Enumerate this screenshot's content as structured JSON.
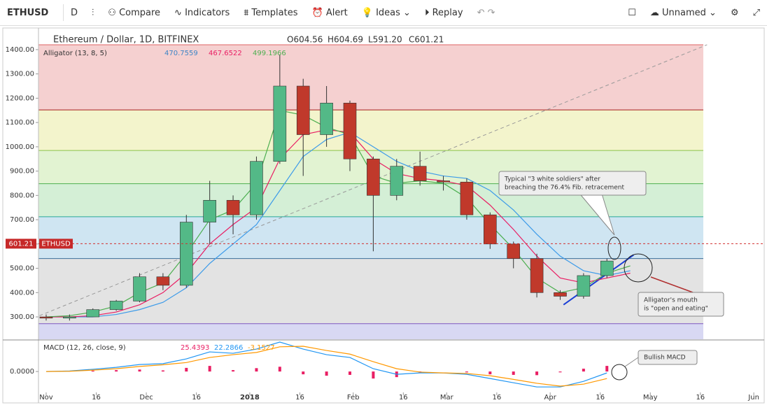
{
  "toolbar": {
    "symbol": "ETHUSD",
    "interval": "D",
    "compare": "Compare",
    "indicators": "Indicators",
    "templates": "Templates",
    "alert": "Alert",
    "ideas": "Ideas",
    "replay": "Replay",
    "layout": "Unnamed"
  },
  "chart_data": [
    {
      "type": "candlestick",
      "title": "Ethereum / Dollar, 1D, BITFINEX",
      "ohlc": [
        "O604.56",
        "H604.69",
        "L591.20",
        "C601.21"
      ],
      "indicator": "Alligator (13, 8, 5)",
      "indicator_values": [
        {
          "value": 470.7559,
          "color": "#3d85c6"
        },
        {
          "value": 467.6522,
          "color": "#e91e63"
        },
        {
          "value": 499.1966,
          "color": "#4caf50"
        }
      ],
      "x": [
        0,
        7,
        14,
        21,
        28,
        35,
        42,
        49,
        56,
        63,
        70,
        77,
        84,
        91,
        98,
        105,
        112,
        119,
        126,
        133,
        140,
        147,
        154,
        161,
        168
      ],
      "open": [
        300,
        295,
        300,
        330,
        365,
        465,
        430,
        690,
        780,
        720,
        940,
        1250,
        1050,
        1180,
        950,
        800,
        920,
        860,
        855,
        720,
        600,
        540,
        400,
        385,
        470
      ],
      "high": [
        310,
        310,
        335,
        370,
        480,
        480,
        720,
        860,
        800,
        960,
        1380,
        1280,
        1250,
        1190,
        960,
        950,
        980,
        880,
        870,
        730,
        610,
        560,
        410,
        480,
        540
      ],
      "low": [
        285,
        285,
        300,
        325,
        360,
        410,
        420,
        600,
        640,
        700,
        930,
        880,
        1000,
        900,
        570,
        780,
        840,
        820,
        700,
        580,
        500,
        380,
        370,
        375,
        460
      ],
      "close": [
        295,
        300,
        330,
        365,
        465,
        430,
        690,
        780,
        720,
        940,
        1250,
        1050,
        1180,
        950,
        800,
        920,
        860,
        855,
        720,
        600,
        540,
        400,
        385,
        470,
        530
      ],
      "up_color": "#53b987",
      "down_color": "#c0392b",
      "alligator": {
        "x": [
          0,
          7,
          14,
          21,
          28,
          35,
          42,
          49,
          56,
          63,
          70,
          77,
          84,
          91,
          98,
          105,
          112,
          119,
          126,
          133,
          140,
          147,
          154,
          161,
          168,
          175
        ],
        "series": [
          {
            "color": "#3d9be9",
            "values": [
              300,
              300,
              300,
              310,
              330,
              360,
              420,
              520,
              600,
              680,
              820,
              960,
              1030,
              1060,
              1000,
              940,
              900,
              880,
              870,
              820,
              740,
              640,
              550,
              490,
              470,
              490
            ]
          },
          {
            "color": "#e91e63",
            "values": [
              300,
              300,
              305,
              320,
              350,
              400,
              480,
              600,
              680,
              750,
              950,
              1050,
              1070,
              1060,
              950,
              890,
              870,
              860,
              840,
              760,
              660,
              550,
              460,
              440,
              460,
              480
            ]
          },
          {
            "color": "#4caf50",
            "values": [
              300,
              305,
              320,
              345,
              400,
              440,
              560,
              700,
              740,
              850,
              1150,
              1130,
              1080,
              1050,
              880,
              850,
              860,
              850,
              790,
              680,
              580,
              460,
              400,
              420,
              480,
              510
            ]
          }
        ]
      },
      "fib_levels": [
        {
          "value": 1420,
          "color": "#e06666",
          "band": "#f5d0d0"
        },
        {
          "value": 1152,
          "color": "#a61c1c",
          "band": "#f3f4cc"
        },
        {
          "value": 985,
          "color": "#8bc34a",
          "band": "#e2f3d2"
        },
        {
          "value": 848,
          "color": "#4caf50",
          "band": "#d4efd6"
        },
        {
          "value": 712,
          "color": "#26a69a",
          "band": "#cfe5f2"
        },
        {
          "value": 540,
          "color": "#3c6e99",
          "band": "#e3e3e3"
        },
        {
          "value": 272,
          "color": "#7e57c2",
          "band": "#d8d8f3"
        }
      ],
      "trend_lines": [
        {
          "x": [
            -2,
            198
          ],
          "y": [
            305,
            1420
          ],
          "color": "#999999",
          "dashed": true
        },
        {
          "x": [
            155,
            176
          ],
          "y": [
            350,
            555
          ],
          "color": "#1a3fd6",
          "dashed": false
        }
      ],
      "last_price": 601.21,
      "last_price_label": "ETHUSD",
      "annotations": [
        {
          "lines": [
            "Typical \"3 white soldiers\" after",
            "breaching the 76.4% Fib. retracement"
          ]
        },
        {
          "lines": [
            "Alligator's mouth",
            "is \"open and eating\""
          ]
        }
      ],
      "xlim": [
        -2.3,
        214.7
      ],
      "ylim": [
        208,
        1489
      ],
      "yticks": [
        {
          "value": 300,
          "label": "300.00"
        },
        {
          "value": 400,
          "label": "400.00"
        },
        {
          "value": 500,
          "label": "500.00"
        },
        {
          "value": 600,
          "label": "600.00"
        },
        {
          "value": 700,
          "label": "700.00"
        },
        {
          "value": 800,
          "label": "800.00"
        },
        {
          "value": 900,
          "label": "900.00"
        },
        {
          "value": 1000,
          "label": "1000.00"
        },
        {
          "value": 1100,
          "label": "1100.00"
        },
        {
          "value": 1200,
          "label": "1200.00"
        },
        {
          "value": 1300,
          "label": "1300.00"
        },
        {
          "value": 1400,
          "label": "1400.00"
        }
      ],
      "xticks": [
        {
          "value": 0,
          "label": "Nov"
        },
        {
          "value": 15,
          "label": "16"
        },
        {
          "value": 30,
          "label": "Dec"
        },
        {
          "value": 45,
          "label": "16"
        },
        {
          "value": 61,
          "label": "2018"
        },
        {
          "value": 76,
          "label": "16"
        },
        {
          "value": 92,
          "label": "Feb"
        },
        {
          "value": 107,
          "label": "16"
        },
        {
          "value": 120,
          "label": "Mar"
        },
        {
          "value": 135,
          "label": "16"
        },
        {
          "value": 151,
          "label": "Apr"
        },
        {
          "value": 166,
          "label": "16"
        },
        {
          "value": 181,
          "label": "May"
        },
        {
          "value": 196,
          "label": "16"
        },
        {
          "value": 212,
          "label": "Jun"
        }
      ]
    },
    {
      "type": "macd",
      "title": "MACD (12, 26, close, 9)",
      "header_values": [
        {
          "value": 25.4393,
          "color": "#e91e63"
        },
        {
          "value": 22.2866,
          "color": "#2196f3"
        },
        {
          "value": -3.1527,
          "color": "#ff9800"
        }
      ],
      "x": [
        0,
        7,
        14,
        21,
        28,
        35,
        42,
        49,
        56,
        63,
        70,
        77,
        84,
        91,
        98,
        105,
        112,
        119,
        126,
        133,
        140,
        147,
        154,
        161,
        168
      ],
      "series": [
        {
          "color": "#2196f3",
          "values": [
            0,
            2,
            8,
            15,
            25,
            28,
            45,
            70,
            65,
            80,
            105,
            80,
            60,
            50,
            10,
            -10,
            -5,
            -5,
            -10,
            -25,
            -40,
            -55,
            -55,
            -35,
            -5
          ]
        },
        {
          "color": "#ff9800",
          "values": [
            0,
            1,
            5,
            10,
            18,
            24,
            32,
            50,
            60,
            68,
            88,
            90,
            75,
            62,
            35,
            10,
            -2,
            -5,
            -7,
            -15,
            -28,
            -42,
            -52,
            -45,
            -25
          ]
        }
      ],
      "histogram": {
        "color": "#e91e63",
        "values": [
          0,
          1,
          3,
          5,
          7,
          4,
          13,
          20,
          5,
          12,
          17,
          -10,
          -15,
          -12,
          -25,
          -20,
          -3,
          0,
          -3,
          -10,
          -12,
          -13,
          -3,
          10,
          20
        ]
      },
      "annotation": "Bullish MACD",
      "xlim": [
        -2.3,
        214.7
      ],
      "ylim": [
        -72,
        110
      ],
      "yticks": [
        {
          "value": 0,
          "label": "0.0000"
        }
      ]
    }
  ]
}
